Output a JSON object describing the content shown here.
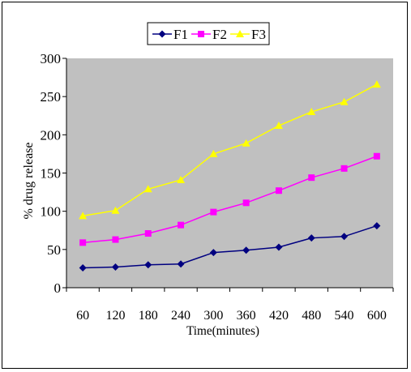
{
  "chart_data": {
    "type": "line",
    "title": "",
    "xlabel": "Time(minutes)",
    "ylabel": "% drug release",
    "categories": [
      "60",
      "120",
      "180",
      "240",
      "300",
      "360",
      "420",
      "480",
      "540",
      "600"
    ],
    "ylim": [
      0,
      300
    ],
    "yticks": [
      0,
      50,
      100,
      150,
      200,
      250,
      300
    ],
    "grid": false,
    "legend_position": "top-center",
    "plot_background": "#c0c0c0",
    "series": [
      {
        "name": "F1",
        "color": "#000080",
        "marker": "diamond",
        "values": [
          26,
          27,
          30,
          31,
          46,
          49,
          53,
          65,
          67,
          81
        ]
      },
      {
        "name": "F2",
        "color": "#ff00ff",
        "marker": "square",
        "values": [
          59,
          63,
          71,
          82,
          99,
          111,
          127,
          144,
          156,
          172
        ]
      },
      {
        "name": "F3",
        "color": "#ffff00",
        "marker": "triangle",
        "values": [
          94,
          101,
          129,
          141,
          175,
          189,
          212,
          230,
          243,
          266
        ]
      }
    ]
  }
}
